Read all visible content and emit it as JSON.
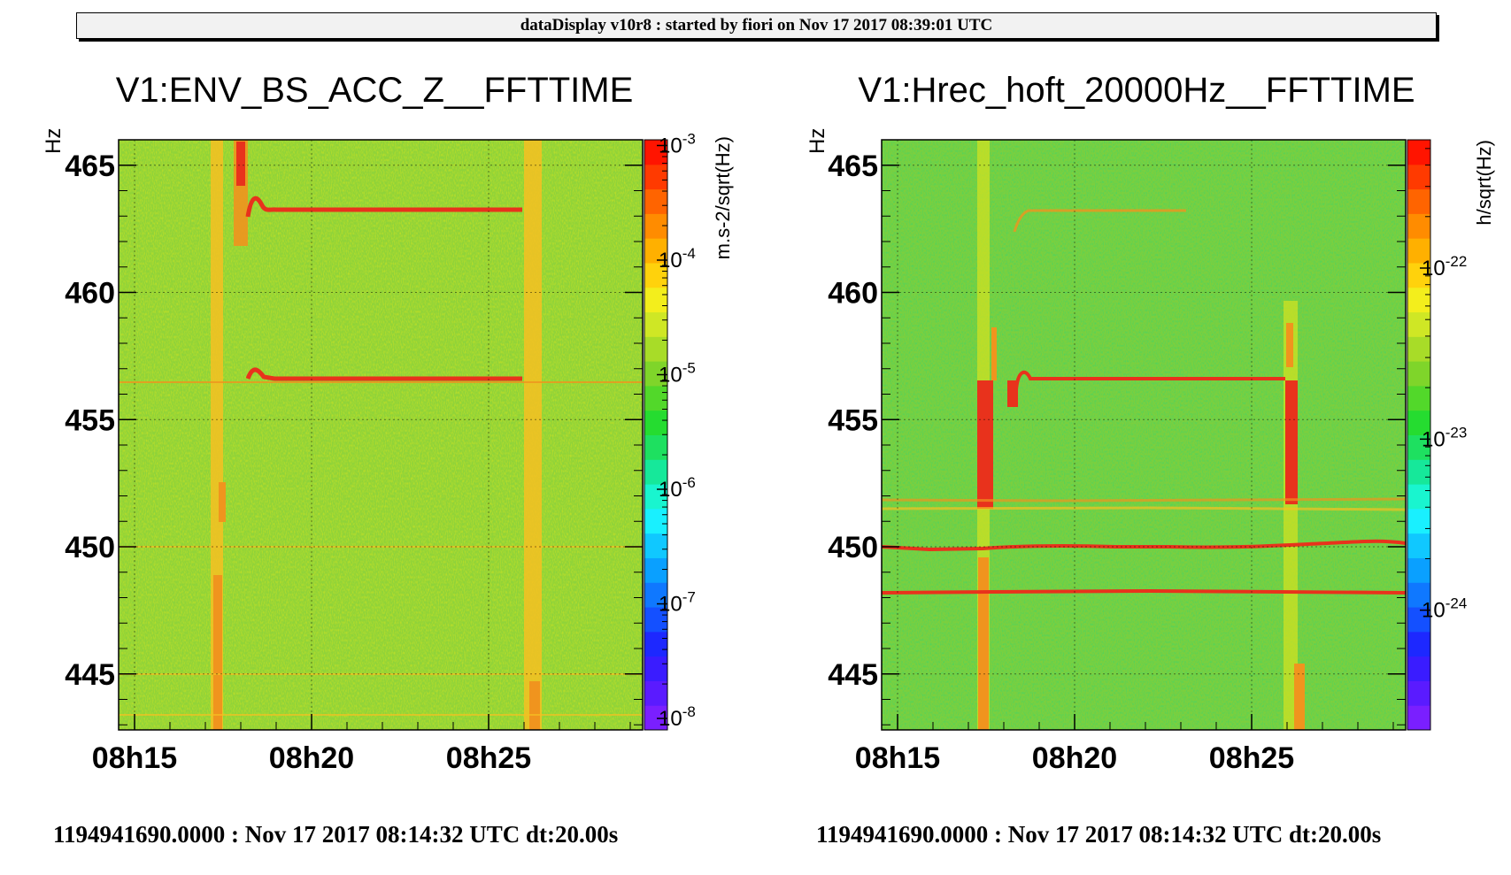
{
  "header": {
    "title": "dataDisplay v10r8 : started by fiori on Nov 17 2017 08:39:01 UTC"
  },
  "colors": {
    "background": "#ffffff",
    "line": "#e0201a",
    "band": "#ffcc00"
  },
  "chart_data": [
    {
      "type": "heatmap",
      "title": "V1:ENV_BS_ACC_Z__FFTTIME",
      "ylabel": "Hz",
      "ylim": [
        442.8,
        466
      ],
      "yticks": [
        445,
        450,
        455,
        460,
        465
      ],
      "xticks": [
        "08h15",
        "08h20",
        "08h25"
      ],
      "zlabel": "m.s-2/sqrt(Hz)",
      "zticks": [
        "10-3",
        "10-4",
        "10-5",
        "10-6",
        "10-7",
        "10-8"
      ],
      "zlim_log": [
        -8.1,
        -2.95
      ],
      "footer": "1194941690.0000 : Nov 17 2017 08:14:32 UTC dt:20.00s"
    },
    {
      "type": "heatmap",
      "title": "V1:Hrec_hoft_20000Hz__FFTTIME",
      "ylabel": "Hz",
      "ylim": [
        442.8,
        466
      ],
      "yticks": [
        445,
        450,
        455,
        460,
        465
      ],
      "xticks": [
        "08h15",
        "08h20",
        "08h25"
      ],
      "zlabel": "h/sqrt(Hz)",
      "zticks": [
        "10-22",
        "10-23",
        "10-24"
      ],
      "zlim_log": [
        -24.7,
        -21.25
      ],
      "footer": "1194941690.0000 : Nov 17 2017 08:14:32 UTC dt:20.00s"
    }
  ]
}
